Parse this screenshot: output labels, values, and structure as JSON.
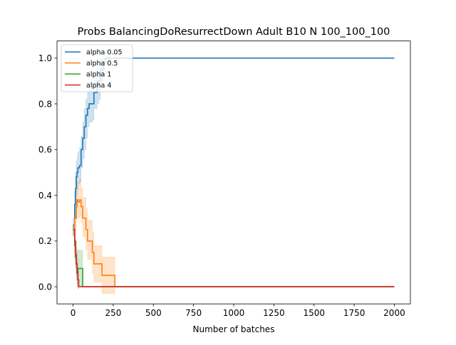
{
  "chart_data": {
    "type": "line",
    "title": "Probs BalancingDoResurrectDown Adult B10 N 100_100_100",
    "xlabel": "Number of batches",
    "ylabel": "",
    "xlim": [
      -100,
      2100
    ],
    "ylim": [
      -0.075,
      1.075
    ],
    "xticks": [
      0,
      250,
      500,
      750,
      1000,
      1250,
      1500,
      1750,
      2000
    ],
    "yticks": [
      0.0,
      0.2,
      0.4,
      0.6,
      0.8,
      1.0
    ],
    "xtick_labels": [
      "0",
      "250",
      "500",
      "750",
      "1000",
      "1250",
      "1500",
      "1750",
      "2000"
    ],
    "ytick_labels": [
      "0.0",
      "0.2",
      "0.4",
      "0.6",
      "0.8",
      "1.0"
    ],
    "grid": false,
    "legend_position": "top-left",
    "series": [
      {
        "name": "alpha 0.05",
        "color": "#1f77b4",
        "x": [
          0,
          10,
          15,
          20,
          25,
          30,
          40,
          50,
          60,
          70,
          80,
          90,
          100,
          120,
          130,
          150,
          160,
          170,
          190,
          200,
          2000
        ],
        "y": [
          0.27,
          0.36,
          0.43,
          0.48,
          0.5,
          0.52,
          0.53,
          0.6,
          0.65,
          0.7,
          0.75,
          0.78,
          0.8,
          0.8,
          0.85,
          0.88,
          0.9,
          0.95,
          0.98,
          1.0,
          1.0
        ],
        "lower": [
          0.25,
          0.3,
          0.35,
          0.4,
          0.42,
          0.45,
          0.46,
          0.52,
          0.56,
          0.6,
          0.65,
          0.7,
          0.72,
          0.73,
          0.78,
          0.8,
          0.82,
          0.9,
          0.95,
          1.0,
          1.0
        ],
        "upper": [
          0.3,
          0.42,
          0.5,
          0.55,
          0.57,
          0.59,
          0.61,
          0.66,
          0.72,
          0.78,
          0.82,
          0.85,
          0.87,
          0.88,
          0.92,
          0.96,
          0.98,
          1.0,
          1.0,
          1.0,
          1.0
        ]
      },
      {
        "name": "alpha 0.5",
        "color": "#ff7f0e",
        "x": [
          0,
          10,
          20,
          25,
          30,
          40,
          50,
          60,
          70,
          80,
          90,
          100,
          120,
          130,
          150,
          180,
          200,
          250,
          260,
          2000
        ],
        "y": [
          0.25,
          0.3,
          0.35,
          0.38,
          0.37,
          0.38,
          0.35,
          0.3,
          0.3,
          0.25,
          0.2,
          0.2,
          0.15,
          0.1,
          0.1,
          0.05,
          0.05,
          0.05,
          0.0,
          0.0
        ],
        "lower": [
          0.22,
          0.25,
          0.28,
          0.3,
          0.3,
          0.31,
          0.28,
          0.22,
          0.22,
          0.16,
          0.12,
          0.12,
          0.06,
          0.02,
          0.02,
          -0.03,
          -0.03,
          -0.03,
          0.0,
          0.0
        ],
        "upper": [
          0.27,
          0.36,
          0.42,
          0.46,
          0.45,
          0.47,
          0.43,
          0.39,
          0.39,
          0.34,
          0.29,
          0.29,
          0.24,
          0.18,
          0.18,
          0.13,
          0.13,
          0.13,
          0.0,
          0.0
        ]
      },
      {
        "name": "alpha 1",
        "color": "#2ca02c",
        "x": [
          0,
          10,
          15,
          20,
          25,
          30,
          40,
          50,
          60,
          2000
        ],
        "y": [
          0.25,
          0.18,
          0.13,
          0.1,
          0.06,
          0.08,
          0.08,
          0.08,
          0.0,
          0.0
        ],
        "lower": [
          0.22,
          0.12,
          0.08,
          0.03,
          0.0,
          0.01,
          0.0,
          0.0,
          0.0,
          0.0
        ],
        "upper": [
          0.27,
          0.23,
          0.2,
          0.17,
          0.14,
          0.16,
          0.16,
          0.16,
          0.0,
          0.0
        ]
      },
      {
        "name": "alpha 4",
        "color": "#d62728",
        "x": [
          0,
          10,
          15,
          20,
          25,
          30,
          35,
          40,
          2000
        ],
        "y": [
          0.25,
          0.2,
          0.14,
          0.1,
          0.06,
          0.03,
          0.0,
          0.0,
          0.0
        ],
        "lower": [
          0.23,
          0.15,
          0.09,
          0.05,
          0.01,
          -0.01,
          0.0,
          0.0,
          0.0
        ],
        "upper": [
          0.27,
          0.25,
          0.2,
          0.16,
          0.12,
          0.08,
          0.0,
          0.0,
          0.0
        ]
      }
    ]
  }
}
